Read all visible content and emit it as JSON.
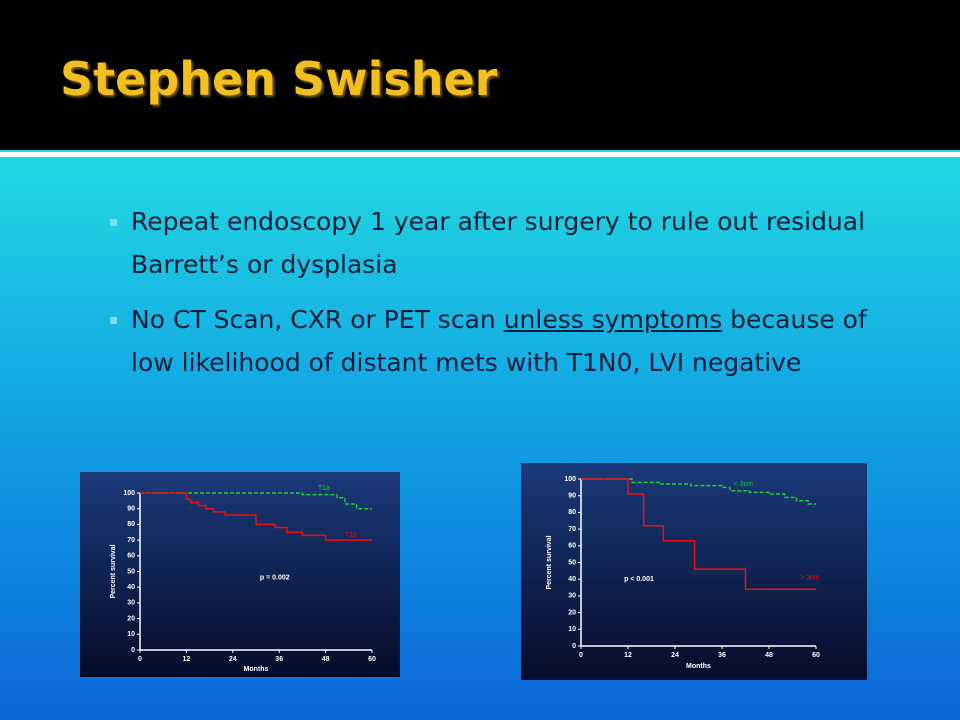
{
  "title": "Stephen Swisher",
  "bullets": [
    [
      "Repeat endoscopy 1 year after surgery to rule out residual Barrett’s or dysplasia"
    ],
    [
      "No CT Scan, CXR or PET scan ",
      "unless symptoms",
      " because of low likelihood of distant mets with T1N0, LVI negative"
    ]
  ],
  "charts": [
    {
      "type": "line",
      "ylabel": "Percent survival",
      "xlabel": "Months",
      "annotation": "p = 0.002",
      "xlim": [
        0,
        60
      ],
      "ylim": [
        0,
        100
      ],
      "xticks": [
        0,
        12,
        24,
        36,
        48,
        60
      ],
      "yticks": [
        0,
        10,
        20,
        30,
        40,
        50,
        60,
        70,
        80,
        90,
        100
      ],
      "series": [
        {
          "name": "T1a",
          "color": "#22cc33",
          "dashed": true,
          "x": [
            0,
            42,
            42,
            51,
            51,
            53,
            53,
            56,
            56,
            60
          ],
          "values": [
            100,
            100,
            99,
            99,
            97,
            97,
            93,
            93,
            90,
            90
          ]
        },
        {
          "name": "T1b",
          "color": "#ee1111",
          "dashed": false,
          "x": [
            0,
            12,
            12,
            13,
            13,
            15,
            15,
            17,
            17,
            19,
            19,
            22,
            22,
            30,
            30,
            35,
            35,
            38,
            38,
            42,
            42,
            48,
            48,
            60
          ],
          "values": [
            100,
            100,
            96,
            96,
            94,
            94,
            92,
            92,
            90,
            90,
            88,
            88,
            86,
            86,
            80,
            80,
            78,
            78,
            75,
            75,
            73,
            73,
            70,
            70
          ]
        }
      ]
    },
    {
      "type": "line",
      "ylabel": "Percent survival",
      "xlabel": "Months",
      "annotation": "p < 0.001",
      "xlim": [
        0,
        60
      ],
      "ylim": [
        0,
        100
      ],
      "xticks": [
        0,
        12,
        24,
        36,
        48,
        60
      ],
      "yticks": [
        0,
        10,
        20,
        30,
        40,
        50,
        60,
        70,
        80,
        90,
        100
      ],
      "series": [
        {
          "name": "< 3cm",
          "color": "#22cc33",
          "dashed": true,
          "x": [
            0,
            13,
            13,
            20,
            20,
            28,
            28,
            36,
            36,
            38,
            38,
            43,
            43,
            48,
            48,
            52,
            52,
            55,
            55,
            58,
            58,
            60
          ],
          "values": [
            100,
            100,
            98,
            98,
            97,
            97,
            96,
            96,
            95,
            95,
            93,
            93,
            92,
            92,
            91,
            91,
            89,
            89,
            87,
            87,
            85,
            85
          ]
        },
        {
          "name": "> 3cm",
          "color": "#ee1111",
          "dashed": false,
          "x": [
            0,
            12,
            12,
            16,
            16,
            21,
            21,
            29,
            29,
            42,
            42,
            60
          ],
          "values": [
            100,
            100,
            91,
            91,
            72,
            72,
            63,
            63,
            46,
            46,
            34,
            34
          ]
        }
      ]
    }
  ]
}
